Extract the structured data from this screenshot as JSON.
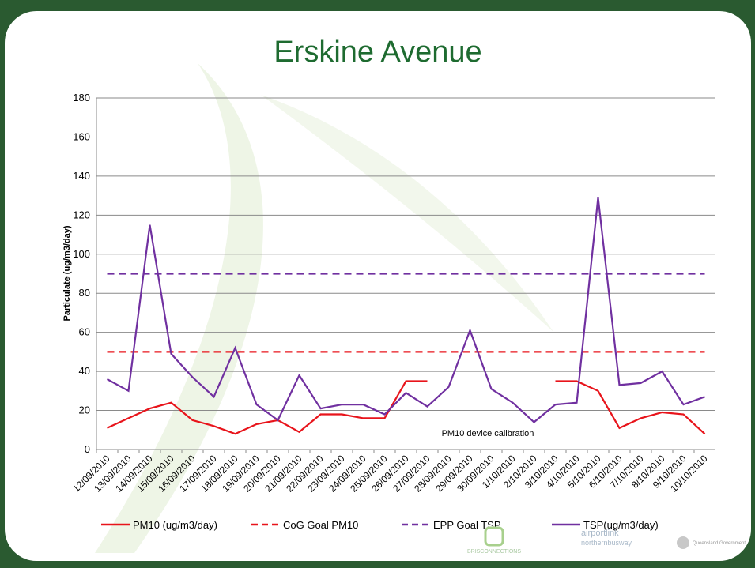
{
  "chart_data": {
    "type": "line",
    "title": "Erskine Avenue",
    "y_label": "Particulate (ug/m3/day)",
    "categories": [
      "12/09/2010",
      "13/09/2010",
      "14/09/2010",
      "15/09/2010",
      "16/09/2010",
      "17/09/2010",
      "18/09/2010",
      "19/09/2010",
      "20/09/2010",
      "21/09/2010",
      "22/09/2010",
      "23/09/2010",
      "24/09/2010",
      "25/09/2010",
      "26/09/2010",
      "27/09/2010",
      "28/09/2010",
      "29/09/2010",
      "30/09/2010",
      "1/10/2010",
      "2/10/2010",
      "3/10/2010",
      "4/10/2010",
      "5/10/2010",
      "6/10/2010",
      "7/10/2010",
      "8/10/2010",
      "9/10/2010",
      "10/10/2010"
    ],
    "series": [
      {
        "name": "PM10 (ug/m3/day)",
        "color": "#e8141b",
        "dashed": false,
        "values": [
          11,
          16,
          21,
          24,
          15,
          12,
          8,
          13,
          15,
          9,
          18,
          18,
          16,
          16,
          35,
          35,
          null,
          null,
          null,
          null,
          null,
          35,
          35,
          30,
          11,
          16,
          19,
          18,
          8
        ]
      },
      {
        "name": "CoG Goal PM10",
        "color": "#e8141b",
        "dashed": true,
        "values": [
          50,
          50,
          50,
          50,
          50,
          50,
          50,
          50,
          50,
          50,
          50,
          50,
          50,
          50,
          50,
          50,
          50,
          50,
          50,
          50,
          50,
          50,
          50,
          50,
          50,
          50,
          50,
          50,
          50
        ]
      },
      {
        "name": "EPP Goal TSP",
        "color": "#7030a0",
        "dashed": true,
        "values": [
          90,
          90,
          90,
          90,
          90,
          90,
          90,
          90,
          90,
          90,
          90,
          90,
          90,
          90,
          90,
          90,
          90,
          90,
          90,
          90,
          90,
          90,
          90,
          90,
          90,
          90,
          90,
          90,
          90
        ]
      },
      {
        "name": "TSP(ug/m3/day)",
        "color": "#7030a0",
        "dashed": false,
        "values": [
          36,
          30,
          115,
          49,
          37,
          27,
          52,
          23,
          15,
          38,
          21,
          23,
          23,
          18,
          29,
          22,
          32,
          61,
          31,
          24,
          14,
          23,
          24,
          129,
          33,
          34,
          40,
          23,
          27
        ]
      }
    ],
    "annotation": "PM10 device calibration",
    "ylim": [
      0,
      180
    ],
    "yticks": [
      0,
      20,
      40,
      60,
      80,
      100,
      120,
      140,
      160,
      180
    ],
    "grid": true,
    "legend": "bottom"
  },
  "footer": {
    "logos": [
      "BRISCONNECTIONS",
      "airportlink",
      "northernbusway",
      "Queensland Government"
    ]
  }
}
